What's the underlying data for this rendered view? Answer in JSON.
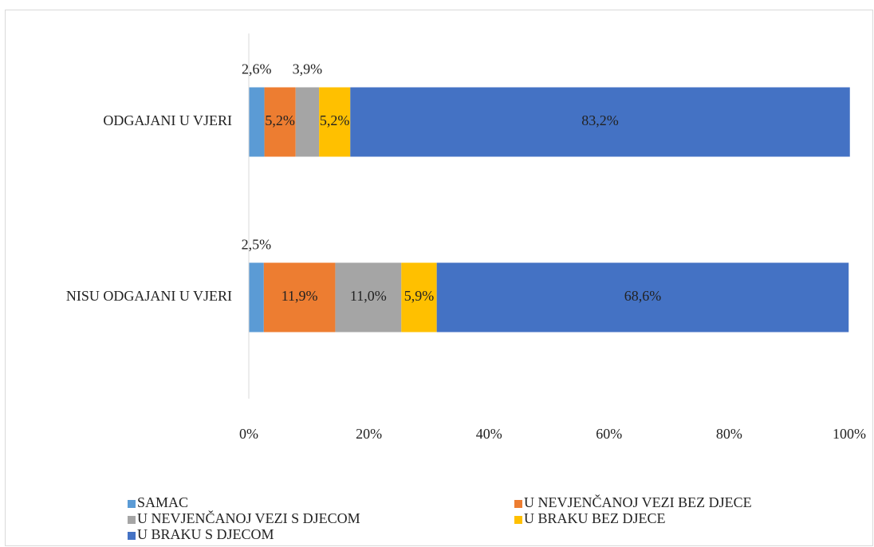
{
  "chart_data": {
    "type": "stacked-bar-horizontal",
    "categories": [
      "ODGAJANI U VJERI",
      "NISU ODGAJANI U VJERI"
    ],
    "series": [
      {
        "name": "SAMAC",
        "color": "#5b9bd5",
        "values": [
          2.6,
          2.5
        ],
        "value_labels": [
          "2,6%",
          "2,5%"
        ]
      },
      {
        "name": "U NEVJENČANOJ VEZI BEZ DJECE",
        "color": "#ed7d31",
        "values": [
          5.2,
          11.9
        ],
        "value_labels": [
          "5,2%",
          "11,9%"
        ]
      },
      {
        "name": "U NEVJENČANOJ VEZI S DJECOM",
        "color": "#a5a5a5",
        "values": [
          3.9,
          11.0
        ],
        "value_labels": [
          "3,9%",
          "11,0%"
        ]
      },
      {
        "name": "U BRAKU BEZ DJECE",
        "color": "#ffc000",
        "values": [
          5.2,
          5.9
        ],
        "value_labels": [
          "5,2%",
          "5,9%"
        ]
      },
      {
        "name": "U BRAKU S DJECOM",
        "color": "#4472c4",
        "values": [
          83.2,
          68.6
        ],
        "value_labels": [
          "83,2%",
          "68,6%"
        ]
      }
    ],
    "xlim": [
      0,
      100
    ],
    "xticks": [
      {
        "value": 0,
        "label": "0%"
      },
      {
        "value": 20,
        "label": "20%"
      },
      {
        "value": 40,
        "label": "40%"
      },
      {
        "value": 60,
        "label": "60%"
      },
      {
        "value": 80,
        "label": "80%"
      },
      {
        "value": 100,
        "label": "100%"
      }
    ],
    "legend": "bottom"
  }
}
